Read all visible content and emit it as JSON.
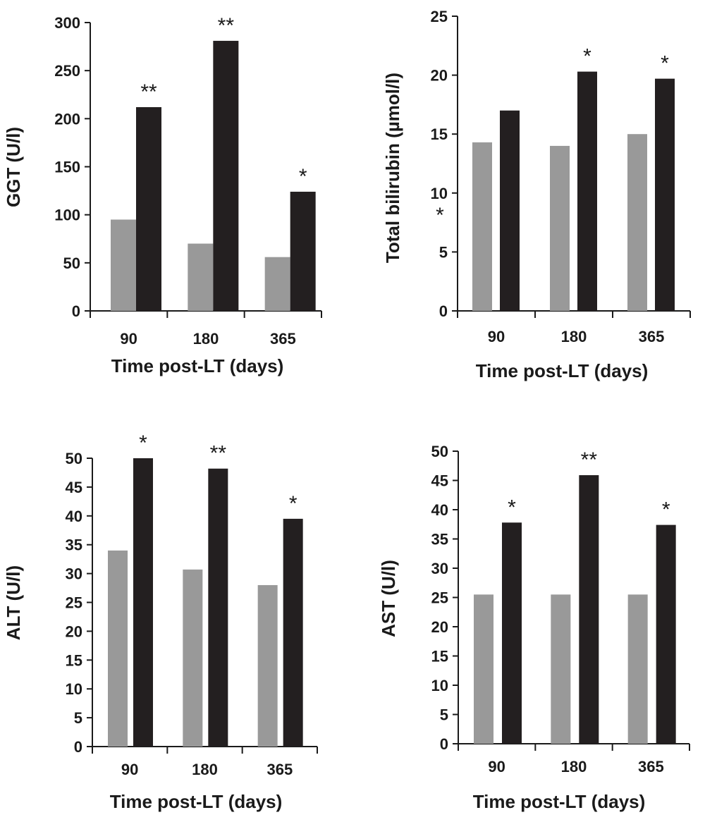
{
  "colors": {
    "light_bar": "#999999",
    "dark_bar": "#231f20",
    "axis": "#1a1a1a"
  },
  "chart_data": [
    {
      "id": "ggt",
      "type": "bar",
      "ylabel": "GGT (U/l)",
      "xlabel": "Time post-LT (days)",
      "categories": [
        "90",
        "180",
        "365"
      ],
      "ylim": [
        0,
        300
      ],
      "yticks": [
        0,
        50,
        100,
        150,
        200,
        250,
        300
      ],
      "series": [
        {
          "values": [
            95,
            70,
            56
          ]
        },
        {
          "values": [
            212,
            281,
            124
          ]
        }
      ],
      "annotations": [
        "**",
        "**",
        "*"
      ],
      "extra_annotations": []
    },
    {
      "id": "bilirubin",
      "type": "bar",
      "ylabel": "Total bilirubin  (µmol/l)",
      "xlabel": "Time post-LT (days)",
      "categories": [
        "90",
        "180",
        "365"
      ],
      "ylim": [
        0,
        25
      ],
      "yticks": [
        0,
        5,
        10,
        15,
        20,
        25
      ],
      "series": [
        {
          "values": [
            14.3,
            14.0,
            15.0
          ]
        },
        {
          "values": [
            17.0,
            20.3,
            19.7
          ]
        }
      ],
      "annotations": [
        "",
        "*",
        "*"
      ],
      "extra_annotations": [
        "*"
      ]
    },
    {
      "id": "alt",
      "type": "bar",
      "ylabel": "ALT (U/l)",
      "xlabel": "Time post-LT (days)",
      "categories": [
        "90",
        "180",
        "365"
      ],
      "ylim": [
        0,
        50
      ],
      "yticks": [
        0,
        5,
        10,
        15,
        20,
        25,
        30,
        35,
        40,
        45,
        50
      ],
      "series": [
        {
          "values": [
            34.0,
            30.7,
            28.0
          ]
        },
        {
          "values": [
            50.0,
            48.2,
            39.5
          ]
        }
      ],
      "annotations": [
        "*",
        "**",
        "*"
      ],
      "extra_annotations": []
    },
    {
      "id": "ast",
      "type": "bar",
      "ylabel": "AST (U/l)",
      "xlabel": "Time post-LT (days)",
      "categories": [
        "90",
        "180",
        "365"
      ],
      "ylim": [
        0,
        50
      ],
      "yticks": [
        0,
        5,
        10,
        15,
        20,
        25,
        30,
        35,
        40,
        45,
        50
      ],
      "series": [
        {
          "values": [
            25.5,
            25.5,
            25.5
          ]
        },
        {
          "values": [
            37.8,
            45.9,
            37.4
          ]
        }
      ],
      "annotations": [
        "*",
        "**",
        "*"
      ],
      "extra_annotations": []
    }
  ]
}
